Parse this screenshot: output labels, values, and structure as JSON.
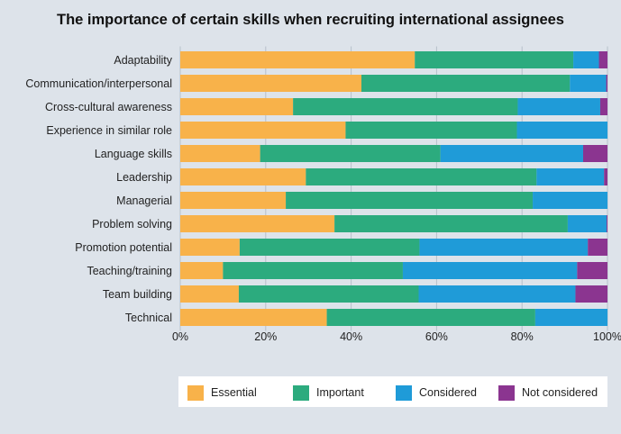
{
  "chart_data": {
    "type": "bar",
    "orientation": "horizontal",
    "stacked": true,
    "title": "The importance of certain skills when recruiting international assignees",
    "categories": [
      "Adaptability",
      "Communication/interpersonal",
      "Cross-cultural awareness",
      "Experience in similar role",
      "Language skills",
      "Leadership",
      "Managerial",
      "Problem solving",
      "Promotion potential",
      "Teaching/training",
      "Team building",
      "Technical"
    ],
    "series": [
      {
        "name": "Essential",
        "color": "#f8b24a",
        "values": [
          54.9,
          42.4,
          26.4,
          38.7,
          18.7,
          29.4,
          24.7,
          36.1,
          13.9,
          10.0,
          13.7,
          34.3
        ]
      },
      {
        "name": "Important",
        "color": "#2cab7e",
        "values": [
          37.1,
          48.8,
          52.6,
          40.1,
          42.2,
          54.0,
          57.8,
          54.6,
          42.1,
          42.1,
          42.1,
          48.8
        ]
      },
      {
        "name": "Considered",
        "color": "#1f9bd8",
        "values": [
          6.0,
          8.5,
          19.3,
          21.2,
          33.4,
          15.8,
          17.5,
          9.1,
          39.4,
          40.8,
          36.7,
          16.9
        ]
      },
      {
        "name": "Not considered",
        "color": "#8b3590",
        "values": [
          2.0,
          0.3,
          1.7,
          0.0,
          5.7,
          0.8,
          0.0,
          0.2,
          4.6,
          7.1,
          7.5,
          0.0
        ]
      }
    ],
    "xlim": [
      0,
      100
    ],
    "x_ticks": [
      "0%",
      "20%",
      "40%",
      "60%",
      "80%",
      "100%"
    ],
    "grid": true,
    "legend": "bottom"
  }
}
